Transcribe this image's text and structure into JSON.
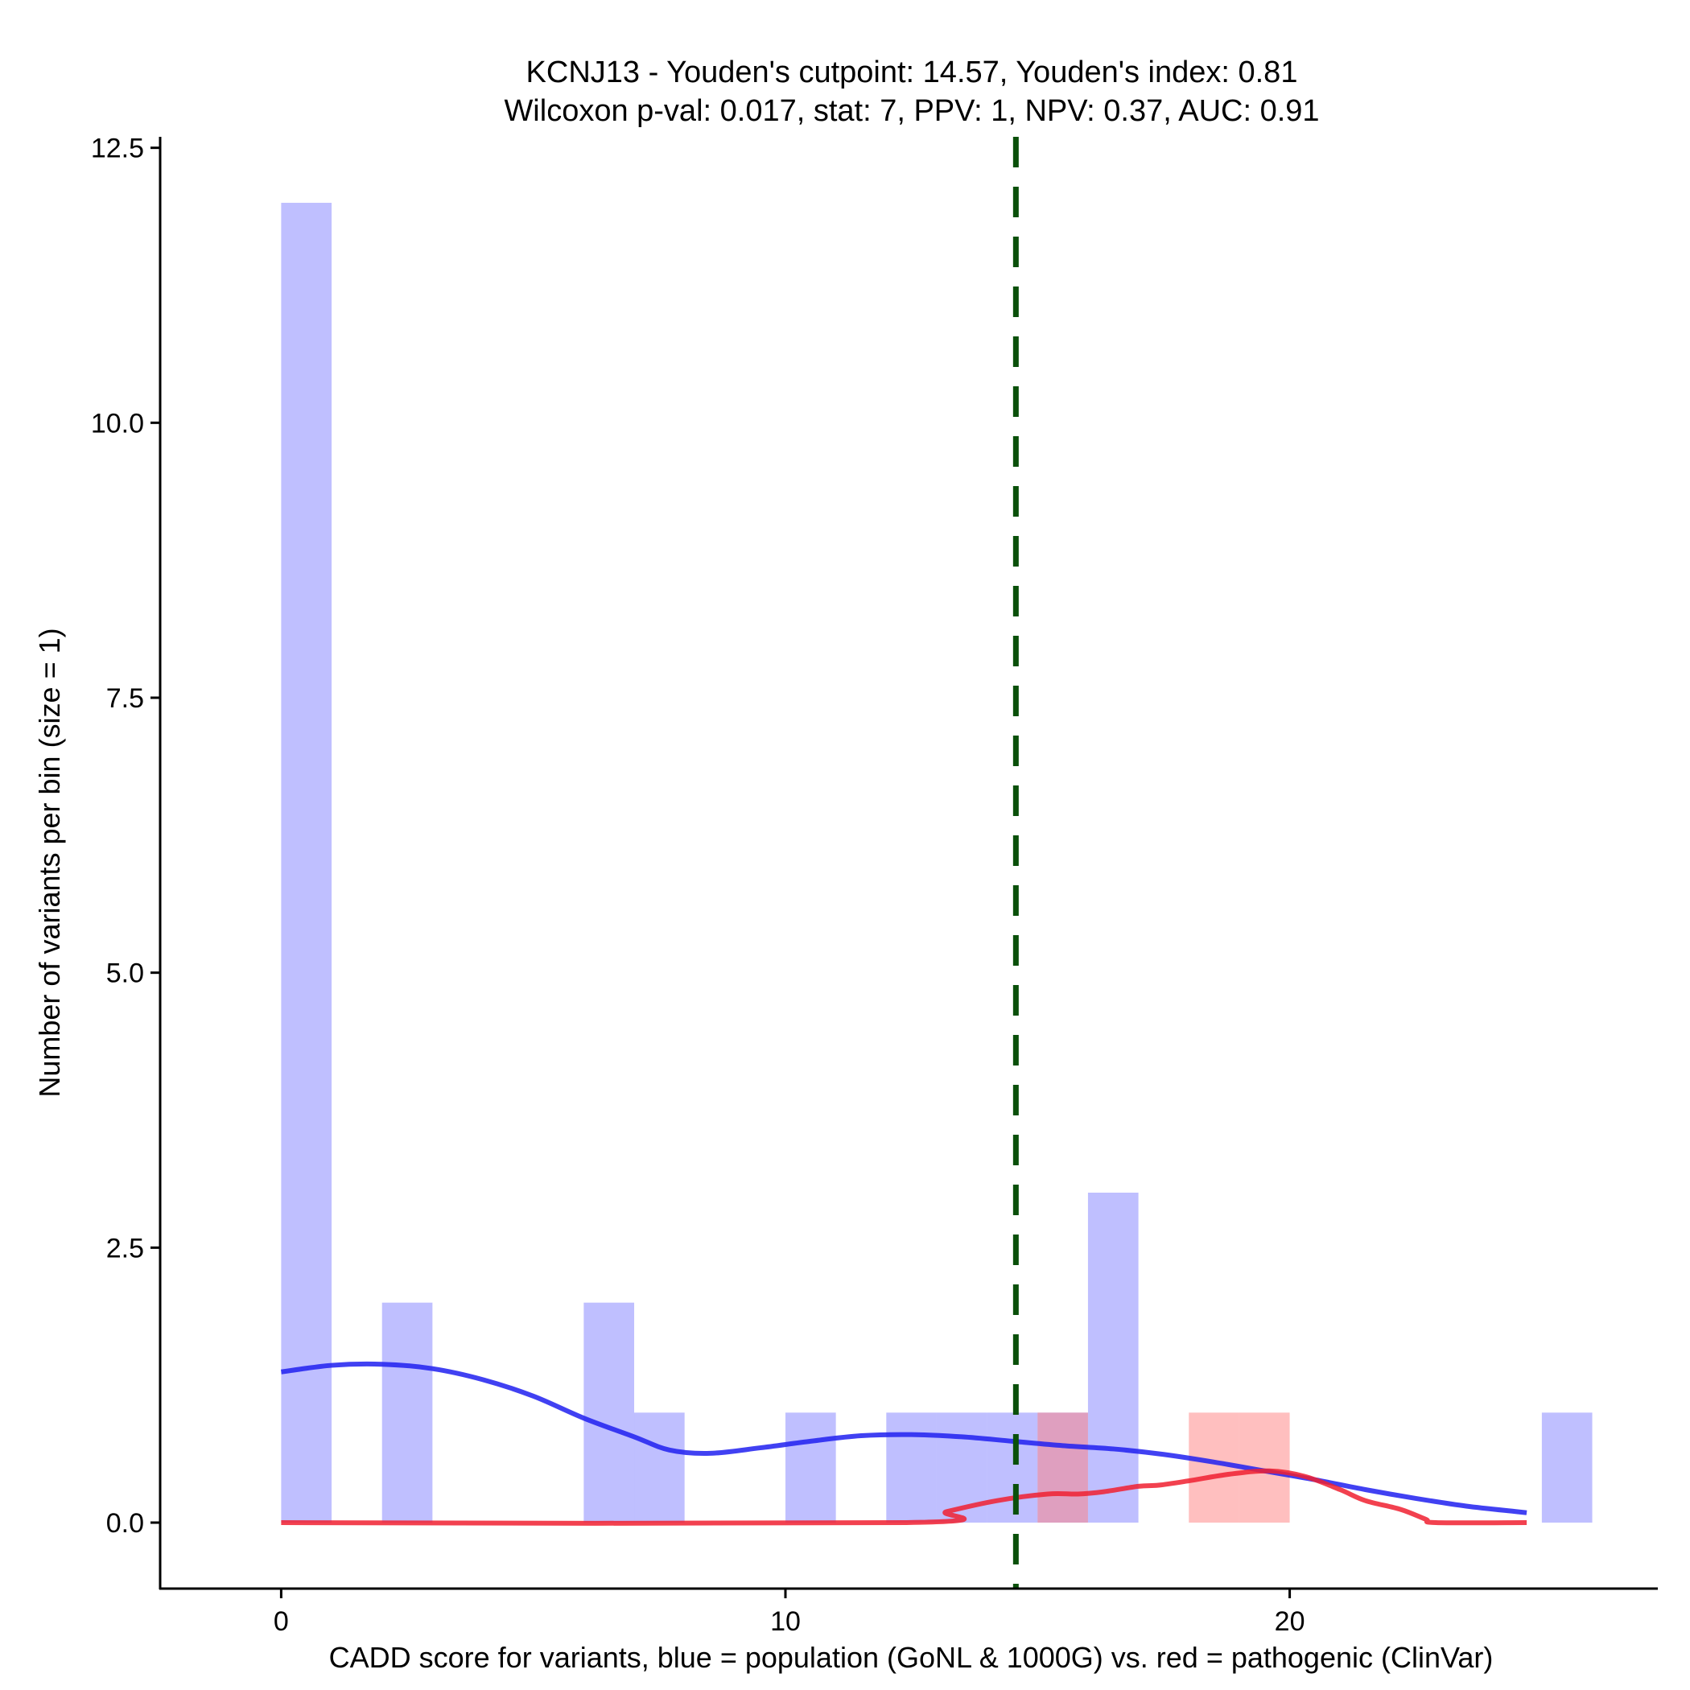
{
  "chart_data": {
    "type": "bar",
    "title_line1": "KCNJ13 - Youden's cutpoint: 14.57, Youden's index: 0.81",
    "title_line2": "Wilcoxon p-val: 0.017, stat: 7, PPV: 1, NPV: 0.37, AUC: 0.91",
    "xlabel": "CADD score for variants, blue = population (GoNL & 1000G) vs. red = pathogenic (ClinVar)",
    "ylabel": "Number of variants per bin (size = 1)",
    "xlim": [
      -2.4,
      27.3
    ],
    "ylim": [
      -0.6,
      12.6
    ],
    "xticks": [
      0,
      10,
      20
    ],
    "xtick_labels": [
      "0",
      "10",
      "20"
    ],
    "yticks": [
      0,
      2.5,
      5,
      7.5,
      10,
      12.5
    ],
    "ytick_labels": [
      "0.0",
      "2.5",
      "5.0",
      "7.5",
      "10.0",
      "12.5"
    ],
    "grid": false,
    "bin_width": 1,
    "series": [
      {
        "name": "population (GoNL & 1000G)",
        "color": "#8080FF",
        "bins": [
          {
            "start": 0,
            "count": 12
          },
          {
            "start": 2,
            "count": 2
          },
          {
            "start": 6,
            "count": 2
          },
          {
            "start": 7,
            "count": 1
          },
          {
            "start": 10,
            "count": 1
          },
          {
            "start": 12,
            "count": 1
          },
          {
            "start": 13,
            "count": 1
          },
          {
            "start": 14,
            "count": 1
          },
          {
            "start": 15,
            "count": 1
          },
          {
            "start": 16,
            "count": 3
          },
          {
            "start": 25,
            "count": 1
          }
        ],
        "density_curve": [
          [
            0,
            1.37
          ],
          [
            1,
            1.43
          ],
          [
            2,
            1.44
          ],
          [
            3,
            1.4
          ],
          [
            4,
            1.3
          ],
          [
            5,
            1.15
          ],
          [
            6,
            0.95
          ],
          [
            7,
            0.78
          ],
          [
            7.7,
            0.66
          ],
          [
            8.5,
            0.63
          ],
          [
            9.5,
            0.68
          ],
          [
            10.5,
            0.74
          ],
          [
            11.5,
            0.79
          ],
          [
            12.5,
            0.8
          ],
          [
            13.5,
            0.78
          ],
          [
            14.5,
            0.74
          ],
          [
            15.5,
            0.7
          ],
          [
            16.5,
            0.67
          ],
          [
            17.5,
            0.62
          ],
          [
            18.5,
            0.55
          ],
          [
            19.5,
            0.47
          ],
          [
            20.5,
            0.39
          ],
          [
            21.5,
            0.3
          ],
          [
            22.5,
            0.22
          ],
          [
            23.5,
            0.15
          ],
          [
            24.5,
            0.1
          ],
          [
            24.7,
            0.09
          ]
        ]
      },
      {
        "name": "pathogenic (ClinVar)",
        "color": "#FF8080",
        "bins": [
          {
            "start": 15,
            "count": 1
          },
          {
            "start": 18,
            "count": 1
          },
          {
            "start": 19,
            "count": 1
          }
        ],
        "density_curve": [
          [
            0,
            0
          ],
          [
            12.4,
            0
          ],
          [
            13.2,
            0.1
          ],
          [
            14.2,
            0.2
          ],
          [
            15.2,
            0.26
          ],
          [
            15.8,
            0.26
          ],
          [
            16.3,
            0.28
          ],
          [
            17,
            0.33
          ],
          [
            17.4,
            0.34
          ],
          [
            18,
            0.38
          ],
          [
            18.8,
            0.44
          ],
          [
            19.6,
            0.47
          ],
          [
            20.3,
            0.42
          ],
          [
            21,
            0.3
          ],
          [
            21.5,
            0.2
          ],
          [
            22.2,
            0.12
          ],
          [
            22.7,
            0.03
          ],
          [
            22.9,
            0
          ],
          [
            24.7,
            0
          ]
        ]
      }
    ],
    "cutpoint": {
      "x": 14.57,
      "color": "#0A500A"
    }
  }
}
